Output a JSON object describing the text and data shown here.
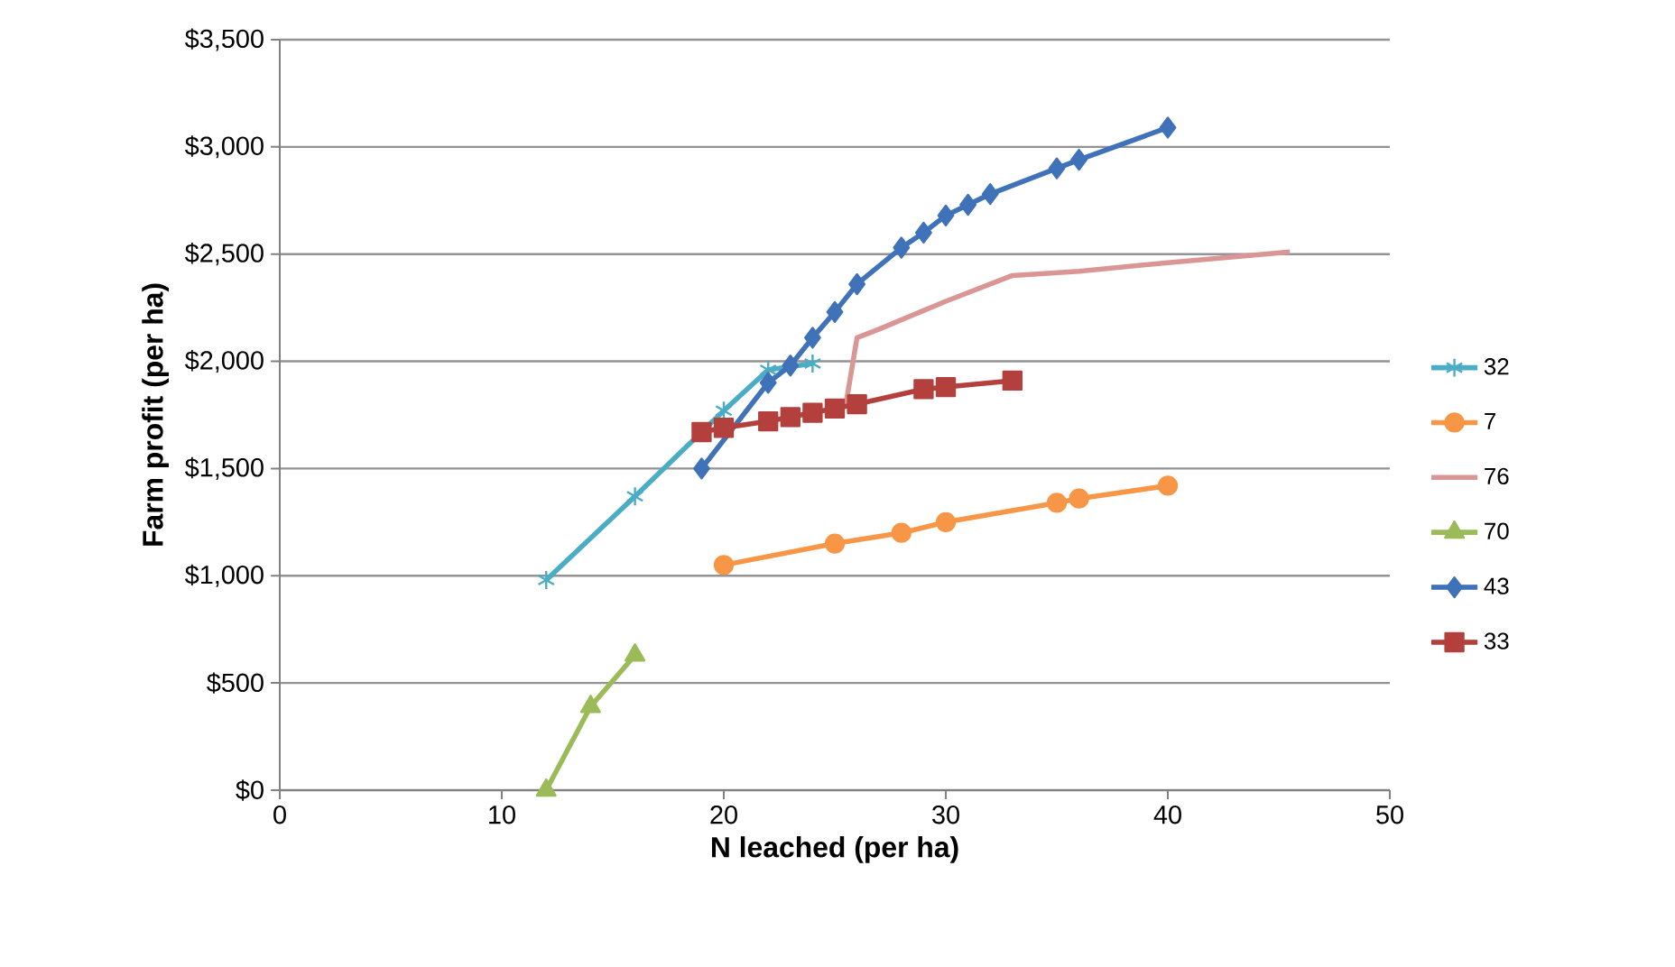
{
  "chart_data": {
    "type": "line",
    "xlabel": "N leached (per ha)",
    "ylabel": "Farm profit (per ha)",
    "xlim": [
      0,
      50
    ],
    "xticks": [
      0,
      10,
      20,
      30,
      40,
      50
    ],
    "ylim": [
      0,
      3500
    ],
    "yticks": [
      {
        "value": 0,
        "label": "$0"
      },
      {
        "value": 500,
        "label": "$500"
      },
      {
        "value": 1000,
        "label": "$1,000"
      },
      {
        "value": 1500,
        "label": "$1,500"
      },
      {
        "value": 2000,
        "label": "$2,000"
      },
      {
        "value": 2500,
        "label": "$2,500"
      },
      {
        "value": 3000,
        "label": "$3,000"
      },
      {
        "value": 3500,
        "label": "$3,500"
      }
    ],
    "grid": "y",
    "legend": "right",
    "series": [
      {
        "name": "32",
        "color": "#4bacc6",
        "marker": "cross",
        "x": [
          12,
          16,
          20,
          22,
          24
        ],
        "values": [
          980,
          1370,
          1770,
          1960,
          1990
        ]
      },
      {
        "name": "7",
        "color": "#f79646",
        "marker": "circle",
        "x": [
          20,
          25,
          28,
          30,
          35,
          36,
          40
        ],
        "values": [
          1050,
          1150,
          1200,
          1250,
          1340,
          1360,
          1420
        ]
      },
      {
        "name": "76",
        "color": "#d99694",
        "marker": "none",
        "x": [
          25.5,
          26,
          27,
          30,
          33,
          36,
          40,
          45.5
        ],
        "values": [
          1800,
          2110,
          2150,
          2280,
          2400,
          2420,
          2460,
          2510
        ]
      },
      {
        "name": "70",
        "color": "#9bbb59",
        "marker": "triangle",
        "x": [
          12,
          14,
          16
        ],
        "values": [
          0,
          390,
          630
        ]
      },
      {
        "name": "43",
        "color": "#3f72b8",
        "marker": "diamond",
        "x": [
          19,
          20,
          22,
          23,
          24,
          25,
          26,
          28,
          29,
          30,
          31,
          32,
          35,
          36,
          40
        ],
        "values": [
          1500,
          null,
          1900,
          1980,
          2110,
          2230,
          2360,
          2530,
          2600,
          2680,
          2730,
          2780,
          2900,
          2940,
          3090
        ]
      },
      {
        "name": "33",
        "color": "#b3403c",
        "marker": "square",
        "x": [
          19,
          20,
          22,
          23,
          24,
          25,
          26,
          29,
          30,
          33
        ],
        "values": [
          1670,
          1690,
          1720,
          1740,
          1760,
          1780,
          1800,
          1870,
          1880,
          1910
        ]
      }
    ]
  }
}
